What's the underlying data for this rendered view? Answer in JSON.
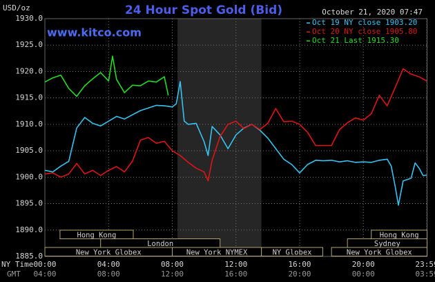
{
  "chart_data": {
    "type": "line",
    "title": "24 Hour Spot Gold (Bid)",
    "y_unit_label": "USD/oz",
    "timestamp": "October 21, 2020 07:47",
    "watermark": "www.kitco.com",
    "x_axis_label": "NY Time",
    "x_axis_label_2": "GMT",
    "xlim": [
      0,
      24
    ],
    "xticks": [
      {
        "value": 0,
        "label": "00:00"
      },
      {
        "value": 4,
        "label": "04:00"
      },
      {
        "value": 8,
        "label": "08:00"
      },
      {
        "value": 12,
        "label": "12:00"
      },
      {
        "value": 16,
        "label": "16:00"
      },
      {
        "value": 20,
        "label": "20:00"
      },
      {
        "value": 23.98,
        "label": "23:59"
      }
    ],
    "xtick_labels_2": [
      "04:00",
      "08:00",
      "12:00",
      "16:00",
      "20:00",
      "00:00",
      "03:59"
    ],
    "ylim": [
      1885,
      1930
    ],
    "yticks": [
      {
        "value": 1885,
        "label": "1885.0"
      },
      {
        "value": 1890,
        "label": "1890.0"
      },
      {
        "value": 1895,
        "label": "1895.0"
      },
      {
        "value": 1900,
        "label": "1900.0"
      },
      {
        "value": 1905,
        "label": "1905.0"
      },
      {
        "value": 1910,
        "label": "1910.0"
      },
      {
        "value": 1915,
        "label": "1915.0"
      },
      {
        "value": 1920,
        "label": "1920.0"
      },
      {
        "value": 1925,
        "label": "1925.0"
      },
      {
        "value": 1930,
        "label": "1930.0"
      }
    ],
    "grid": true,
    "shaded_range": [
      8.33,
      13.6
    ],
    "series": [
      {
        "name": "Oct 19 NY close 1903.20",
        "color": "#35c4f2",
        "x": [
          0,
          0.5,
          1,
          1.5,
          2,
          2.5,
          3,
          3.5,
          4,
          4.5,
          5,
          5.5,
          6,
          6.5,
          7,
          7.5,
          8,
          8.25,
          8.5,
          8.75,
          9,
          9.5,
          10,
          10.25,
          10.5,
          11,
          11.5,
          12,
          12.5,
          13,
          13.5,
          14,
          14.5,
          15,
          15.5,
          16,
          16.5,
          17,
          17.5,
          18,
          18.5,
          19,
          19.5,
          20,
          20.5,
          21,
          21.5,
          21.75,
          22,
          22.2,
          22.5,
          23,
          23.25,
          23.5,
          23.75,
          23.98
        ],
        "values": [
          1901.3,
          1901.0,
          1902.1,
          1903.0,
          1909.3,
          1911.3,
          1910.2,
          1909.7,
          1910.6,
          1911.5,
          1911.0,
          1911.8,
          1912.6,
          1913.1,
          1913.6,
          1913.5,
          1913.3,
          1913.9,
          1918.1,
          1910.6,
          1910.0,
          1910.2,
          1906.7,
          1904.1,
          1909.6,
          1908.0,
          1905.4,
          1908.0,
          1909.3,
          1910.0,
          1908.9,
          1907.4,
          1905.4,
          1903.4,
          1902.4,
          1900.8,
          1902.4,
          1903.2,
          1903.1,
          1903.2,
          1902.9,
          1903.1,
          1902.8,
          1902.9,
          1902.8,
          1903.2,
          1903.4,
          1902.1,
          1898.2,
          1894.7,
          1899.3,
          1899.8,
          1902.7,
          1901.7,
          1900.3,
          1900.4
        ]
      },
      {
        "name": "Oct 20 NY close 1905.80",
        "color": "#e01414",
        "x": [
          0,
          0.5,
          1,
          1.5,
          2,
          2.5,
          3,
          3.5,
          4,
          4.5,
          5,
          5.5,
          6,
          6.5,
          7,
          7.5,
          8,
          8.5,
          9,
          9.5,
          10,
          10.25,
          10.5,
          11,
          11.5,
          12,
          12.5,
          13,
          13.5,
          14,
          14.5,
          15,
          15.5,
          16,
          16.5,
          17,
          17.5,
          18,
          18.5,
          19,
          19.5,
          20,
          20.5,
          21,
          21.5,
          22,
          22.5,
          23,
          23.5,
          23.98
        ],
        "values": [
          1900.6,
          1900.8,
          1900.0,
          1900.6,
          1902.6,
          1900.6,
          1901.3,
          1900.3,
          1901.3,
          1902.0,
          1901.0,
          1903.0,
          1907.0,
          1907.5,
          1906.4,
          1906.8,
          1905.0,
          1904.1,
          1902.8,
          1901.7,
          1901.0,
          1899.3,
          1903.2,
          1907.7,
          1910.0,
          1910.6,
          1909.2,
          1910.0,
          1909.0,
          1910.2,
          1913.0,
          1910.5,
          1910.6,
          1910.0,
          1908.5,
          1906.0,
          1906.0,
          1906.0,
          1909.0,
          1910.3,
          1911.2,
          1910.8,
          1912.0,
          1915.5,
          1913.5,
          1917.0,
          1920.5,
          1919.5,
          1919.0,
          1918.2
        ]
      },
      {
        "name": "Oct 21 Last 1915.30",
        "color": "#22dd22",
        "x": [
          0,
          0.5,
          1,
          1.5,
          2,
          2.5,
          3,
          3.5,
          4,
          4.25,
          4.5,
          5,
          5.5,
          6,
          6.5,
          7,
          7.5,
          7.75
        ],
        "values": [
          1918.0,
          1918.8,
          1919.3,
          1916.8,
          1915.3,
          1917.3,
          1918.6,
          1919.8,
          1918.2,
          1922.9,
          1918.5,
          1916.0,
          1917.4,
          1917.3,
          1918.2,
          1918.0,
          1919.0,
          1915.5
        ]
      }
    ],
    "session_rows": [
      [
        {
          "label": "Hong Kong",
          "start": 0.95,
          "end": 5.55
        },
        {
          "label": "Hong Kong",
          "start": 20.5,
          "end": 24
        }
      ],
      [
        {
          "label": "London",
          "start": 3.5,
          "end": 11.0
        },
        {
          "label": "Sydney",
          "start": 19.0,
          "end": 24
        }
      ],
      [
        {
          "label": "New York Globex",
          "start": 0,
          "end": 8.0
        },
        {
          "label": "New York NYMEX",
          "start": 8.0,
          "end": 13.6
        },
        {
          "label": "NY Globex",
          "start": 13.6,
          "end": 17.45
        },
        {
          "label": "New York Globex",
          "start": 18.0,
          "end": 24
        }
      ]
    ]
  }
}
